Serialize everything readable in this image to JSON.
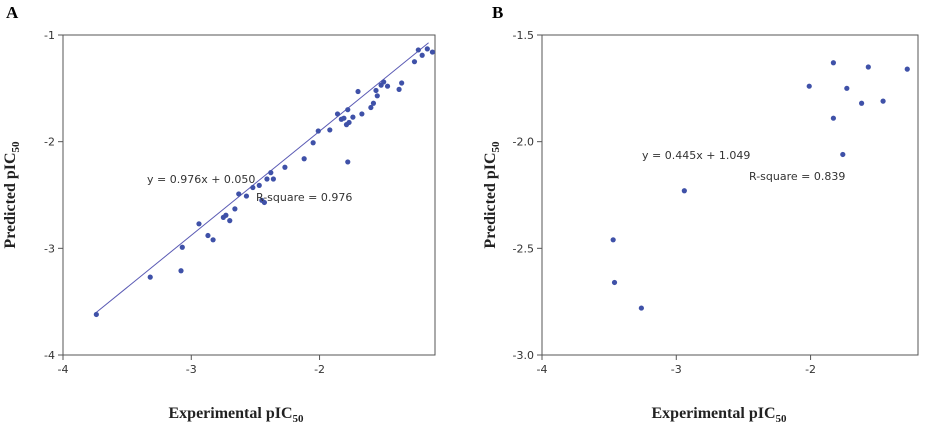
{
  "chart_data": [
    {
      "type": "scatter",
      "panel": "A",
      "xlabel": "Experimental pIC50",
      "ylabel": "Predicted pIC50",
      "xlim": [
        -4,
        -1.1
      ],
      "ylim": [
        -4,
        -1
      ],
      "xticks": [
        -4,
        -3,
        -2
      ],
      "yticks": [
        -4,
        -3,
        -2,
        -1
      ],
      "grid": false,
      "equation": "y = 0.976x + 0.050",
      "r_square": "R-square = 0.976",
      "fit": {
        "slope": 0.976,
        "intercept": 0.05,
        "x_range": [
          -3.75,
          -1.15
        ]
      },
      "points": [
        [
          -3.74,
          -3.62
        ],
        [
          -3.32,
          -3.27
        ],
        [
          -3.08,
          -3.21
        ],
        [
          -3.07,
          -2.99
        ],
        [
          -2.94,
          -2.77
        ],
        [
          -2.87,
          -2.88
        ],
        [
          -2.83,
          -2.92
        ],
        [
          -2.75,
          -2.71
        ],
        [
          -2.73,
          -2.69
        ],
        [
          -2.7,
          -2.74
        ],
        [
          -2.66,
          -2.63
        ],
        [
          -2.63,
          -2.49
        ],
        [
          -2.57,
          -2.51
        ],
        [
          -2.52,
          -2.43
        ],
        [
          -2.47,
          -2.41
        ],
        [
          -2.45,
          -2.55
        ],
        [
          -2.43,
          -2.57
        ],
        [
          -2.41,
          -2.35
        ],
        [
          -2.38,
          -2.29
        ],
        [
          -2.36,
          -2.35
        ],
        [
          -2.27,
          -2.24
        ],
        [
          -2.12,
          -2.16
        ],
        [
          -2.05,
          -2.01
        ],
        [
          -2.01,
          -1.9
        ],
        [
          -1.92,
          -1.89
        ],
        [
          -1.86,
          -1.74
        ],
        [
          -1.83,
          -1.79
        ],
        [
          -1.81,
          -1.78
        ],
        [
          -1.79,
          -1.84
        ],
        [
          -1.78,
          -1.7
        ],
        [
          -1.77,
          -1.82
        ],
        [
          -1.74,
          -1.77
        ],
        [
          -1.78,
          -2.19
        ],
        [
          -1.7,
          -1.53
        ],
        [
          -1.67,
          -1.74
        ],
        [
          -1.6,
          -1.68
        ],
        [
          -1.58,
          -1.64
        ],
        [
          -1.56,
          -1.52
        ],
        [
          -1.55,
          -1.57
        ],
        [
          -1.52,
          -1.47
        ],
        [
          -1.5,
          -1.44
        ],
        [
          -1.47,
          -1.48
        ],
        [
          -1.38,
          -1.51
        ],
        [
          -1.36,
          -1.45
        ],
        [
          -1.26,
          -1.25
        ],
        [
          -1.23,
          -1.14
        ],
        [
          -1.2,
          -1.19
        ],
        [
          -1.16,
          -1.13
        ],
        [
          -1.12,
          -1.16
        ]
      ]
    },
    {
      "type": "scatter",
      "panel": "B",
      "xlabel": "Experimental pIC50",
      "ylabel": "Predicted pIC50",
      "xlim": [
        -4,
        -1.2
      ],
      "ylim": [
        -3.0,
        -1.5
      ],
      "xticks": [
        -4,
        -3,
        -2
      ],
      "yticks": [
        -3.0,
        -2.5,
        -2.0,
        -1.5
      ],
      "ytick_labels": [
        "-3.0",
        "-2.5",
        "-2.0",
        "-1.5"
      ],
      "grid": false,
      "equation": "y = 0.445x + 1.049",
      "r_square": "R-square = 0.839",
      "fit": {
        "slope": 0.445,
        "intercept": 1.049,
        "x_range": [
          -3.47,
          -1.22
        ]
      },
      "points": [
        [
          -3.47,
          -2.46
        ],
        [
          -3.46,
          -2.66
        ],
        [
          -3.26,
          -2.78
        ],
        [
          -2.94,
          -2.23
        ],
        [
          -2.01,
          -1.74
        ],
        [
          -1.83,
          -1.63
        ],
        [
          -1.83,
          -1.89
        ],
        [
          -1.76,
          -2.06
        ],
        [
          -1.73,
          -1.75
        ],
        [
          -1.62,
          -1.82
        ],
        [
          -1.57,
          -1.65
        ],
        [
          -1.46,
          -1.81
        ],
        [
          -1.28,
          -1.66
        ]
      ]
    }
  ]
}
